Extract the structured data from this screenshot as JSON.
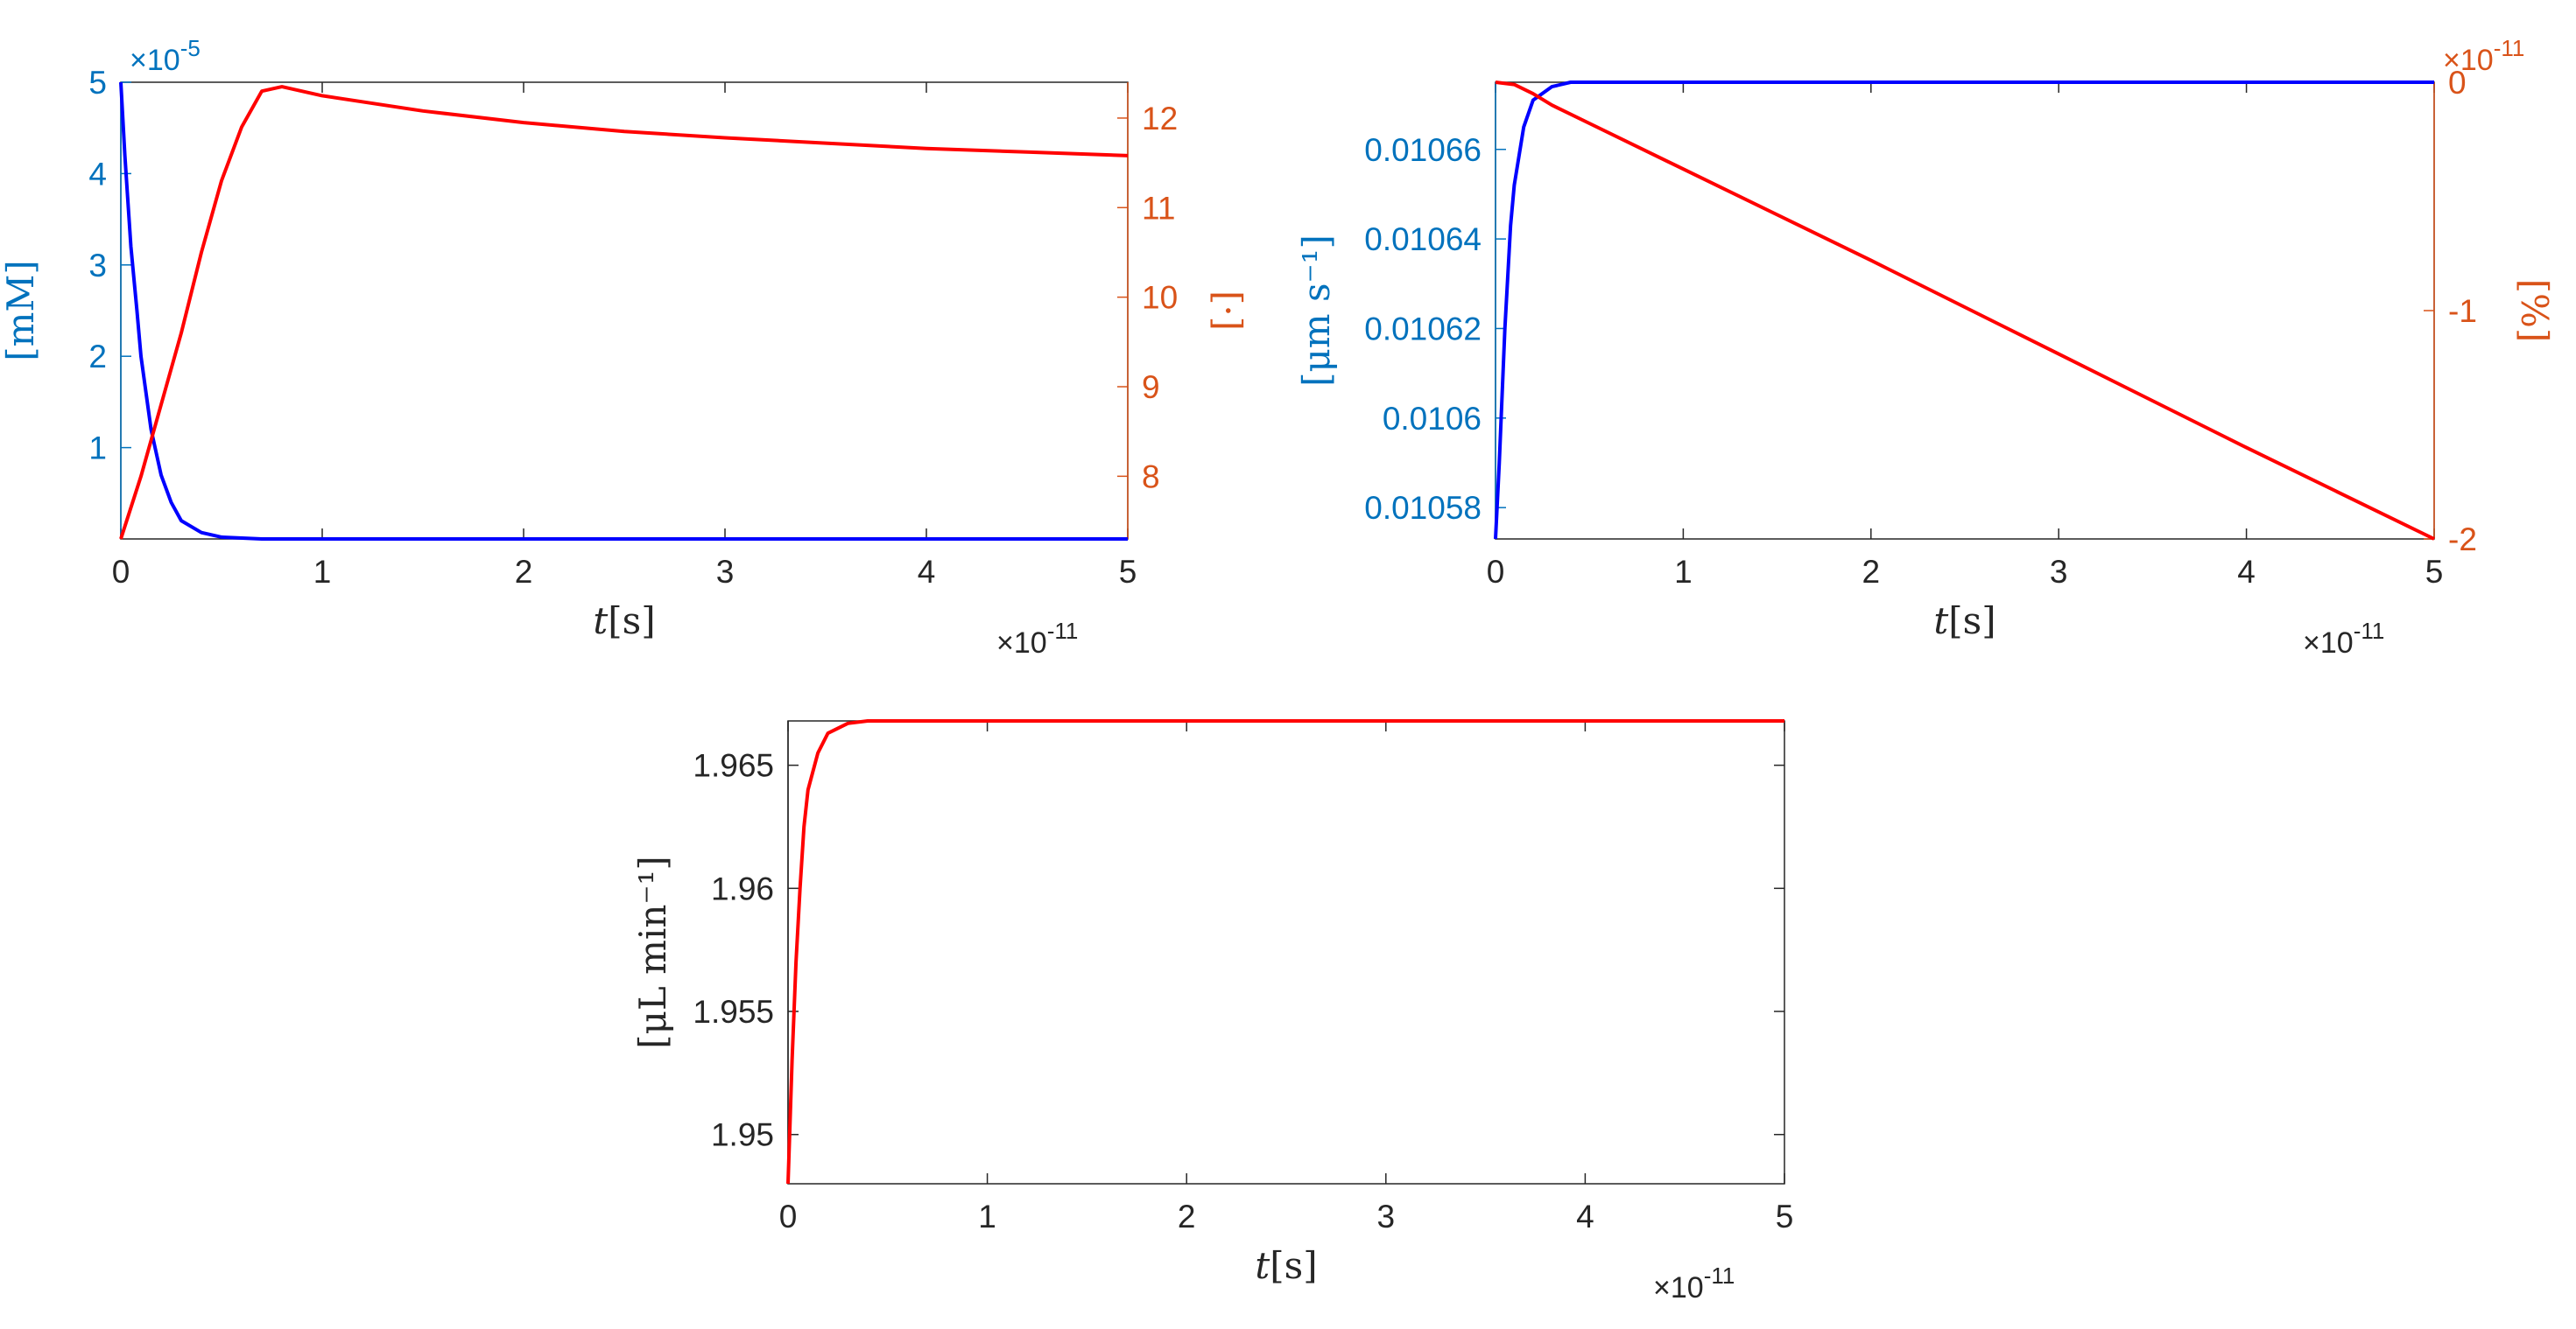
{
  "colors": {
    "left_axis": "#0072BD",
    "right_axis": "#D95319",
    "blue_series": "#0000FF",
    "red_series": "#FF0000",
    "axis": "#262626"
  },
  "chart_data": [
    {
      "type": "line",
      "panel": "top-left",
      "xlabel_italic": "t",
      "xlabel_unit": "[s]",
      "x_exponent": "×10",
      "x_exponent_power": "-11",
      "xlim": [
        0,
        5
      ],
      "x_ticks": [
        "0",
        "1",
        "2",
        "3",
        "4",
        "5"
      ],
      "left": {
        "label": "[mM]",
        "ylim": [
          0,
          5
        ],
        "ticks": [
          "1",
          "2",
          "3",
          "4",
          "5"
        ],
        "tick_values": [
          1,
          2,
          3,
          4,
          5
        ],
        "exponent": "×10",
        "exponent_power": "-5"
      },
      "right": {
        "label": "[·]",
        "ylim": [
          7.3,
          12.4
        ],
        "ticks": [
          "8",
          "9",
          "10",
          "11",
          "12"
        ],
        "tick_values": [
          8,
          9,
          10,
          11,
          12
        ]
      },
      "series": [
        {
          "axis": "left",
          "color": "blue_series",
          "points": [
            [
              0,
              5
            ],
            [
              0.02,
              4.2
            ],
            [
              0.05,
              3.2
            ],
            [
              0.08,
              2.5
            ],
            [
              0.1,
              2.0
            ],
            [
              0.15,
              1.2
            ],
            [
              0.2,
              0.7
            ],
            [
              0.25,
              0.4
            ],
            [
              0.3,
              0.2
            ],
            [
              0.4,
              0.07
            ],
            [
              0.5,
              0.02
            ],
            [
              0.7,
              0.0
            ],
            [
              5,
              0.0
            ]
          ]
        },
        {
          "axis": "right",
          "color": "red_series",
          "points": [
            [
              0,
              7.3
            ],
            [
              0.1,
              8.0
            ],
            [
              0.2,
              8.8
            ],
            [
              0.3,
              9.6
            ],
            [
              0.4,
              10.5
            ],
            [
              0.5,
              11.3
            ],
            [
              0.6,
              11.9
            ],
            [
              0.7,
              12.3
            ],
            [
              0.8,
              12.35
            ],
            [
              1.0,
              12.25
            ],
            [
              1.5,
              12.08
            ],
            [
              2,
              11.95
            ],
            [
              2.5,
              11.85
            ],
            [
              3,
              11.78
            ],
            [
              3.5,
              11.72
            ],
            [
              4,
              11.66
            ],
            [
              4.5,
              11.62
            ],
            [
              5,
              11.58
            ]
          ]
        }
      ]
    },
    {
      "type": "line",
      "panel": "top-right",
      "xlabel_italic": "t",
      "xlabel_unit": "[s]",
      "x_exponent": "×10",
      "x_exponent_power": "-11",
      "xlim": [
        0,
        5
      ],
      "x_ticks": [
        "0",
        "1",
        "2",
        "3",
        "4",
        "5"
      ],
      "left": {
        "label": "[μm s⁻¹]",
        "ylim": [
          0.010573,
          0.010675
        ],
        "ticks": [
          "0.01058",
          "0.0106",
          "0.01062",
          "0.01064",
          "0.01066"
        ],
        "tick_values": [
          0.01058,
          0.0106,
          0.01062,
          0.01064,
          0.01066
        ]
      },
      "right": {
        "label": "[%]",
        "ylim": [
          -2,
          0
        ],
        "ticks": [
          "-2",
          "-1",
          "0"
        ],
        "tick_values": [
          -2,
          -1,
          0
        ],
        "exponent": "×10",
        "exponent_power": "-11"
      },
      "series": [
        {
          "axis": "left",
          "color": "blue_series",
          "points": [
            [
              0,
              0.010573
            ],
            [
              0.02,
              0.01059
            ],
            [
              0.05,
              0.01062
            ],
            [
              0.08,
              0.010643
            ],
            [
              0.1,
              0.010652
            ],
            [
              0.15,
              0.010665
            ],
            [
              0.2,
              0.010671
            ],
            [
              0.3,
              0.010674
            ],
            [
              0.4,
              0.010675
            ],
            [
              5,
              0.010675
            ]
          ]
        },
        {
          "axis": "right",
          "color": "red_series",
          "points": [
            [
              0,
              0
            ],
            [
              0.1,
              -0.01
            ],
            [
              0.2,
              -0.05
            ],
            [
              0.3,
              -0.1
            ],
            [
              0.5,
              -0.18
            ],
            [
              1,
              -0.38
            ],
            [
              2,
              -0.78
            ],
            [
              3,
              -1.19
            ],
            [
              4,
              -1.6
            ],
            [
              5,
              -2.0
            ]
          ]
        }
      ]
    },
    {
      "type": "line",
      "panel": "bottom",
      "xlabel_italic": "t",
      "xlabel_unit": "[s]",
      "x_exponent": "×10",
      "x_exponent_power": "-11",
      "xlim": [
        0,
        5
      ],
      "x_ticks": [
        "0",
        "1",
        "2",
        "3",
        "4",
        "5"
      ],
      "left": {
        "label": "[μL min⁻¹]",
        "ylim": [
          1.948,
          1.9668
        ],
        "ticks": [
          "1.95",
          "1.955",
          "1.96",
          "1.965"
        ],
        "tick_values": [
          1.95,
          1.955,
          1.96,
          1.965
        ]
      },
      "series": [
        {
          "axis": "left",
          "color": "red_series",
          "points": [
            [
              0,
              1.948
            ],
            [
              0.02,
              1.953
            ],
            [
              0.04,
              1.957
            ],
            [
              0.06,
              1.96
            ],
            [
              0.08,
              1.9625
            ],
            [
              0.1,
              1.964
            ],
            [
              0.15,
              1.9655
            ],
            [
              0.2,
              1.9663
            ],
            [
              0.3,
              1.9667
            ],
            [
              0.4,
              1.9668
            ],
            [
              5,
              1.9668
            ]
          ]
        }
      ]
    }
  ]
}
